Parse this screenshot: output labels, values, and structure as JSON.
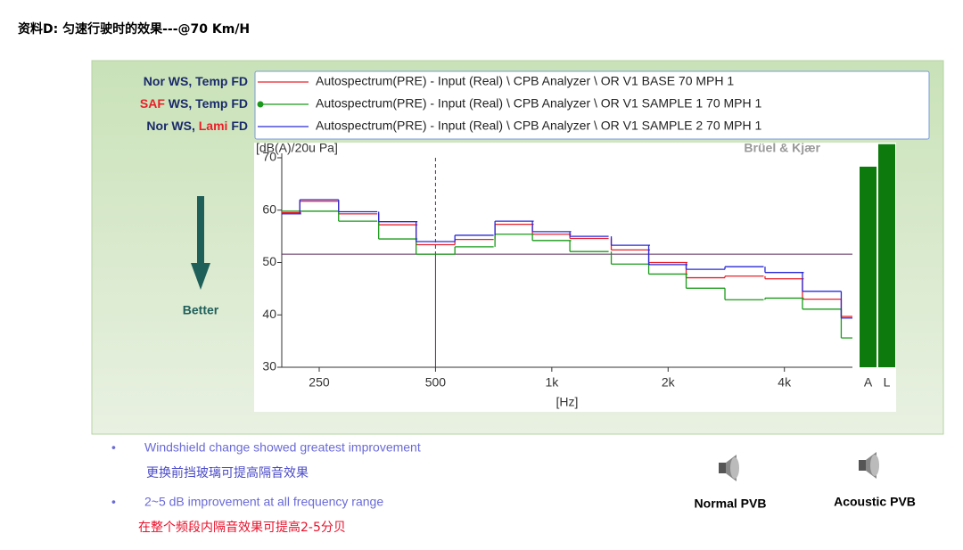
{
  "title": "资料D: 匀速行驶时的效果---@70 Km/H",
  "legend_left": [
    [
      "Nor",
      " WS, Temp FD"
    ],
    [
      "SAF",
      " WS, Temp FD"
    ],
    [
      "Nor WS, ",
      "Lami",
      " FD"
    ]
  ],
  "better": "Better",
  "bullets": [
    "Windshield change showed greatest improvement",
    "更换前挡玻璃可提高隔音效果",
    "2~5 dB improvement at all frequency range",
    "在整个频段内隔音效果可提高2-5分贝"
  ],
  "speakers": [
    "Normal PVB",
    "Acoustic PVB"
  ],
  "chart_data": {
    "type": "line",
    "step": "mid",
    "log_x": true,
    "ylabel": "[dB(A)/20u Pa]",
    "xlabel": "[Hz]",
    "brand": "Brüel & Kjær",
    "x": [
      200,
      250,
      315,
      400,
      500,
      630,
      800,
      1000,
      1250,
      1600,
      2000,
      2500,
      3150,
      4000,
      5000,
      6300
    ],
    "xlim": [
      200,
      6000
    ],
    "ylim": [
      30,
      70
    ],
    "xticks": [
      250,
      500,
      {
        "value": 1000,
        "label": "1k"
      },
      {
        "value": 2000,
        "label": "2k"
      },
      {
        "value": 4000,
        "label": "4k"
      }
    ],
    "yticks": [
      30,
      40,
      50,
      60,
      70
    ],
    "series": [
      {
        "name": "Autospectrum(PRE) - Input (Real) \\ CPB Analyzer \\ OR V1 BASE 70 MPH 1",
        "color": "#e8202a",
        "values": [
          59.5,
          61.7,
          59.3,
          57.2,
          53.4,
          54.4,
          57.3,
          55.4,
          54.6,
          52.4,
          50,
          47.1,
          47.4,
          46.9,
          43,
          39.7
        ]
      },
      {
        "name": "Autospectrum(PRE) - Input (Real) \\ CPB Analyzer \\ OR V1 SAMPLE 1 70 MPH 1",
        "color": "#1a9a1a",
        "marker": true,
        "values": [
          59.8,
          59.8,
          57.9,
          54.5,
          51.6,
          53,
          55.4,
          54.2,
          52.1,
          49.7,
          47.8,
          45.1,
          42.9,
          43.2,
          41.1,
          35.6
        ]
      },
      {
        "name": "Autospectrum(PRE) - Input (Real) \\ CPB Analyzer \\ OR V1 SAMPLE 2 70 MPH 1",
        "color": "#2a2ad8",
        "values": [
          59.3,
          62,
          59.7,
          57.8,
          54,
          55.2,
          57.9,
          55.9,
          55,
          53.3,
          49.6,
          48.7,
          49.2,
          48.1,
          44.5,
          39.4
        ]
      }
    ],
    "cursor": {
      "x": 500,
      "y": 51.6
    },
    "totals": {
      "categories": [
        "A",
        "L"
      ],
      "values": [
        68.3,
        72.6
      ],
      "color": "#0c7a0c"
    }
  }
}
